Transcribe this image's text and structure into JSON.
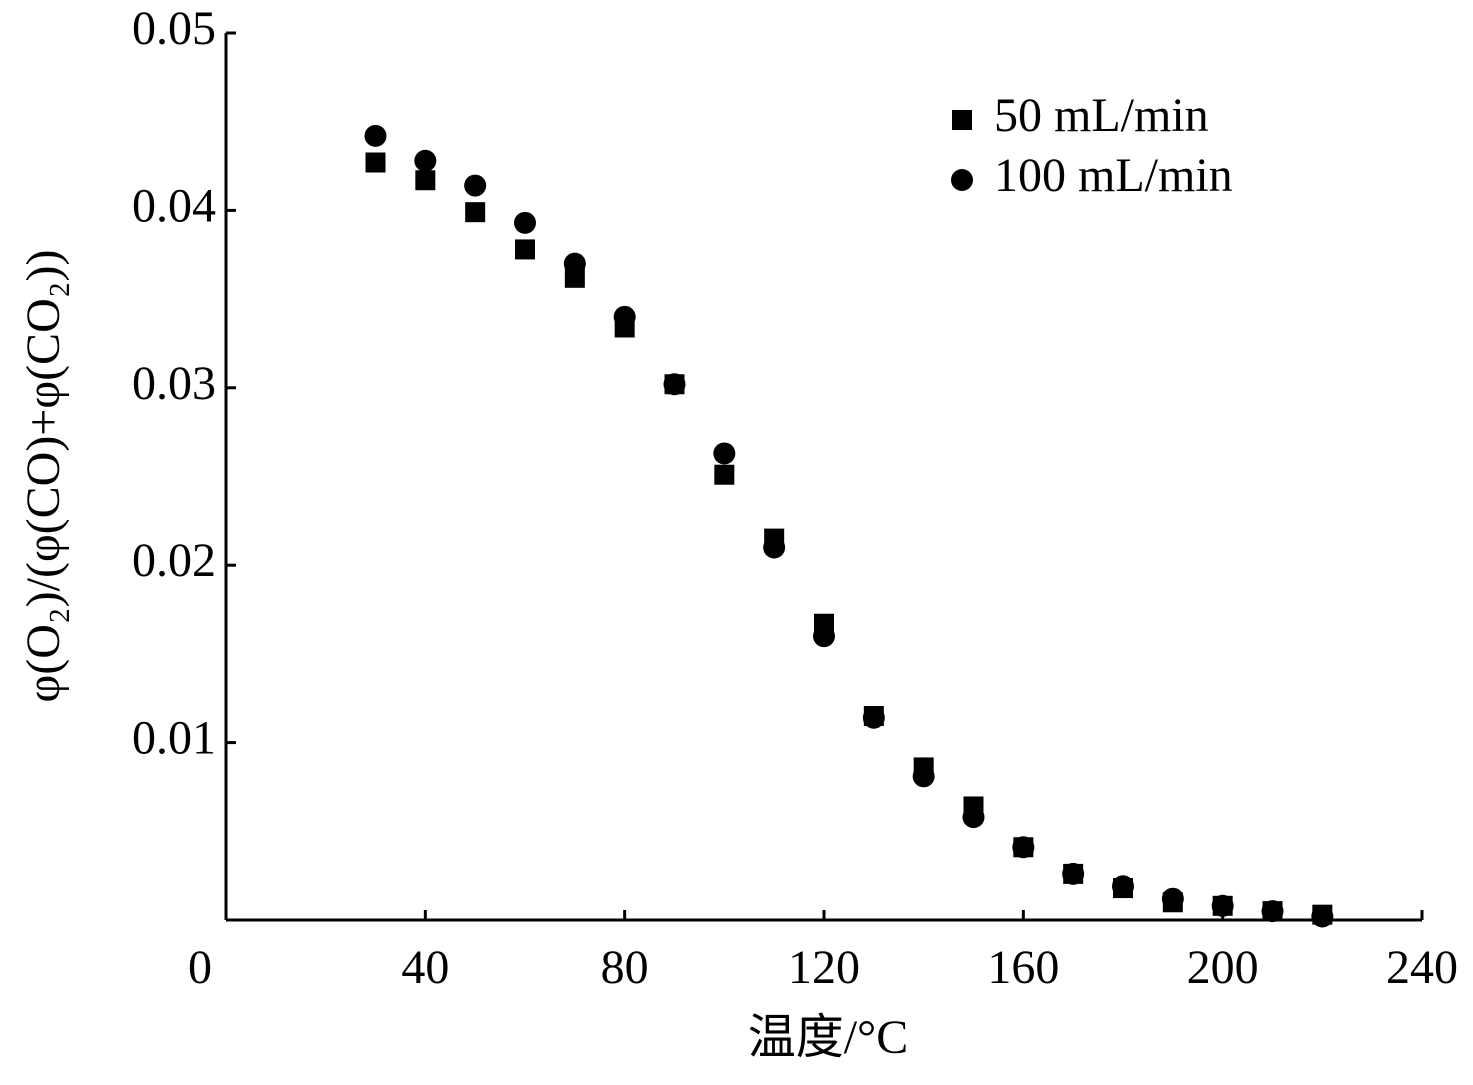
{
  "chart_data": {
    "type": "scatter",
    "x_label": "温度/°C",
    "y_label": "φ(O₂)/(φ(CO)+φ(CO₂))",
    "x": [
      30,
      40,
      50,
      60,
      70,
      80,
      90,
      100,
      110,
      120,
      130,
      140,
      150,
      160,
      170,
      180,
      190,
      200,
      210,
      220
    ],
    "series": [
      {
        "name": "50 mL/min",
        "color": "#000000",
        "marker": "square",
        "values": [
          0.0427,
          0.0417,
          0.0399,
          0.0378,
          0.0362,
          0.0334,
          0.0302,
          0.0251,
          0.0215,
          0.0167,
          0.0115,
          0.0086,
          0.0064,
          0.0041,
          0.0026,
          0.0018,
          0.001,
          0.0008,
          0.0005,
          0.0003
        ]
      },
      {
        "name": "100 mL/min",
        "color": "#000000",
        "marker": "circle",
        "values": [
          0.0442,
          0.0428,
          0.0414,
          0.0393,
          0.037,
          0.034,
          0.0302,
          0.0263,
          0.021,
          0.016,
          0.0114,
          0.0081,
          0.0058,
          0.0041,
          0.0026,
          0.0019,
          0.0012,
          0.0008,
          0.0005,
          0.0002
        ]
      }
    ],
    "xlim": [
      0,
      240
    ],
    "xticks": [
      0,
      40,
      80,
      120,
      160,
      200,
      240
    ],
    "ylim": [
      0,
      0.05
    ],
    "yticks": [
      0.01,
      0.02,
      0.03,
      0.04,
      0.05
    ],
    "legend": "top right",
    "grid": false
  }
}
